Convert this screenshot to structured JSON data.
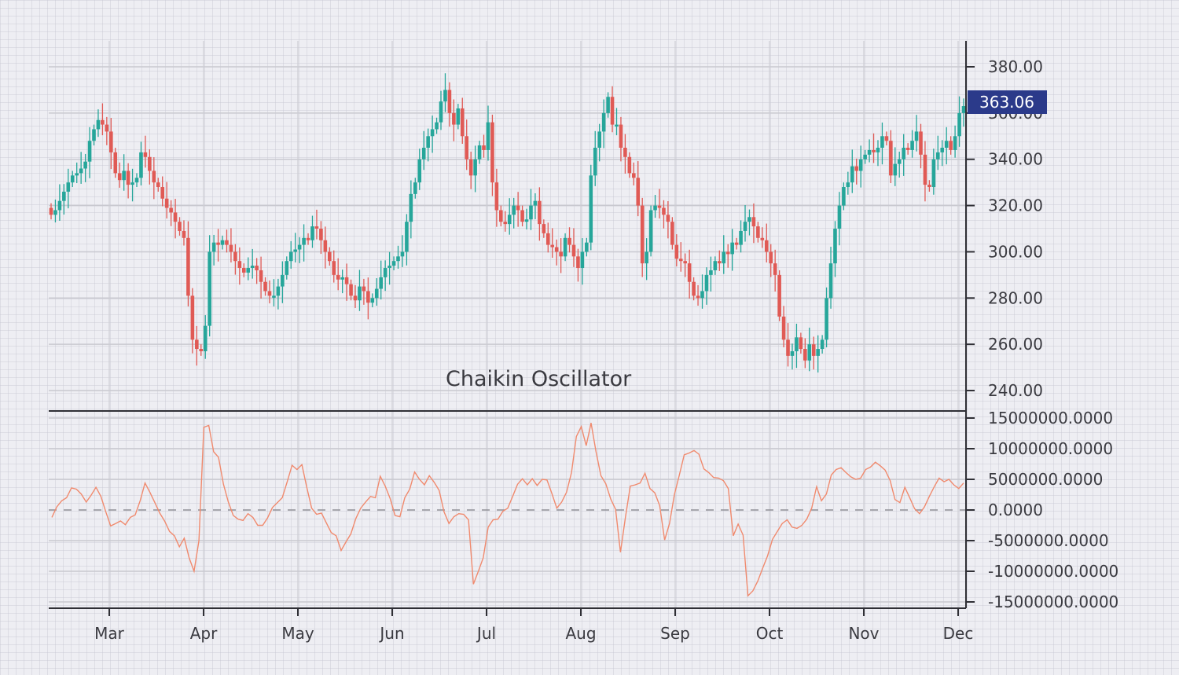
{
  "chart_data": [
    {
      "type": "candlestick",
      "title": "",
      "xlabel": "",
      "ylabel": "",
      "x_ticks": [
        "Mar",
        "Apr",
        "May",
        "Jun",
        "Jul",
        "Aug",
        "Sep",
        "Oct",
        "Nov",
        "Dec"
      ],
      "y_ticks": [
        "380.00",
        "360.00",
        "340.00",
        "320.00",
        "300.00",
        "280.00",
        "260.00",
        "240.00"
      ],
      "ylim": [
        232,
        390
      ],
      "last_price_label": "363.06",
      "up_color": "#26a69a",
      "down_color": "#ef5350",
      "grid": true,
      "closes": [
        316,
        318,
        322,
        326,
        330,
        333,
        334,
        336,
        339,
        348,
        353,
        357,
        355,
        352,
        343,
        334,
        331,
        335,
        329,
        330,
        332,
        343,
        341,
        335,
        330,
        328,
        323,
        319,
        317,
        313,
        309,
        306,
        281,
        262,
        258,
        257,
        268,
        300,
        304,
        303,
        305,
        303,
        300,
        296,
        293,
        291,
        293,
        294,
        292,
        287,
        283,
        281,
        281,
        285,
        290,
        296,
        300,
        301,
        303,
        306,
        305,
        311,
        310,
        305,
        300,
        296,
        290,
        288,
        289,
        286,
        281,
        279,
        285,
        283,
        278,
        280,
        284,
        289,
        293,
        294,
        296,
        298,
        300,
        313,
        325,
        330,
        340,
        345,
        350,
        353,
        356,
        365,
        370,
        360,
        355,
        362,
        350,
        340,
        333,
        340,
        346,
        344,
        356,
        330,
        318,
        313,
        312,
        316,
        320,
        318,
        313,
        314,
        320,
        322,
        312,
        308,
        303,
        302,
        300,
        298,
        306,
        303,
        298,
        293,
        300,
        304,
        333,
        345,
        352,
        360,
        367,
        355,
        355,
        345,
        341,
        334,
        332,
        320,
        295,
        300,
        318,
        320,
        319,
        316,
        313,
        303,
        297,
        296,
        295,
        287,
        281,
        280,
        283,
        290,
        292,
        296,
        295,
        300,
        299,
        304,
        303,
        309,
        313,
        315,
        311,
        306,
        305,
        300,
        295,
        290,
        272,
        262,
        255,
        257,
        263,
        258,
        253,
        260,
        255,
        258,
        262,
        280,
        295,
        310,
        320,
        328,
        330,
        337,
        335,
        340,
        342,
        344,
        343,
        345,
        350,
        348,
        333,
        338,
        340,
        345,
        344,
        348,
        352,
        342,
        329,
        328,
        340,
        343,
        345,
        348,
        344,
        350,
        360,
        363
      ],
      "oscillator": {
        "title": "Chaikin Oscillator",
        "y_ticks": [
          "15000000.0000",
          "10000000.0000",
          "5000000.0000",
          "0.0000",
          "-5000000.0000",
          "-10000000.0000",
          "-15000000.0000"
        ],
        "ylim": [
          -16000000,
          16000000
        ],
        "line_color": "#f08a6e",
        "zero_line": "dashed",
        "values": [
          -1.2,
          0.5,
          1.5,
          2,
          3.6,
          3.4,
          2.6,
          1.3,
          2.4,
          3.7,
          2.2,
          -0.3,
          -2.6,
          -2.2,
          -1.8,
          -2.4,
          -1.2,
          -0.8,
          1.5,
          4.4,
          2.9,
          1.2,
          -0.5,
          -1.8,
          -3.5,
          -4.2,
          -6,
          -4.6,
          -7.8,
          -10,
          -5,
          13.5,
          13.8,
          9.5,
          8.6,
          4.2,
          1.3,
          -0.9,
          -1.5,
          -1.7,
          -0.6,
          -1.2,
          -2.5,
          -2.5,
          -1.3,
          0.4,
          1.2,
          2,
          4.6,
          7.3,
          6.6,
          7.4,
          3.7,
          0.3,
          -0.7,
          -0.5,
          -2.1,
          -3.7,
          -4.2,
          -6.6,
          -5.2,
          -3.9,
          -1.4,
          0.3,
          1.3,
          2.2,
          2,
          5.5,
          3.9,
          1.9,
          -0.9,
          -1.1,
          2,
          3.4,
          6.2,
          5,
          4.1,
          5.6,
          4.5,
          3.2,
          -0.3,
          -2.2,
          -1.1,
          -0.6,
          -0.7,
          -1.6,
          -12.1,
          -10,
          -7.8,
          -2.8,
          -1.6,
          -1.5,
          -0.2,
          0.3,
          2.2,
          4.2,
          5.1,
          4.1,
          5.1,
          4,
          5,
          4.9,
          2.7,
          0.3,
          1.3,
          2.9,
          6.1,
          12,
          13.6,
          10.5,
          14.2,
          9.5,
          5.6,
          4.3,
          1.8,
          0.1,
          -6.9,
          -1.2,
          3.9,
          4.1,
          4.4,
          6,
          3.5,
          2.8,
          0.7,
          -4.9,
          -2.2,
          2.5,
          5.7,
          9,
          9.3,
          9.7,
          9.1,
          6.7,
          6.1,
          5.3,
          5.2,
          4.8,
          3.5,
          -4.2,
          -2.3,
          -4.1,
          -14,
          -13.2,
          -11.6,
          -9.5,
          -7.5,
          -4.8,
          -3.5,
          -2.2,
          -1.6,
          -2.8,
          -3,
          -2.5,
          -1.5,
          0.3,
          3.8,
          1.5,
          2.6,
          5.7,
          6.6,
          6.9,
          6.1,
          5.4,
          5,
          5.2,
          6.6,
          7,
          7.8,
          7.2,
          6.5,
          4.8,
          1.7,
          1.2,
          3.7,
          2,
          0.2,
          -0.6,
          0.5,
          2.2,
          3.8,
          5.2,
          4.6,
          5,
          4.1,
          3.5,
          4.4
        ]
      }
    }
  ],
  "labels": {
    "oscillator_title": "Chaikin Oscillator",
    "last_price": "363.06",
    "price_ticks": [
      "380.00",
      "360.00",
      "340.00",
      "320.00",
      "300.00",
      "280.00",
      "260.00",
      "240.00"
    ],
    "osc_ticks": [
      "15000000.0000",
      "10000000.0000",
      "5000000.0000",
      "0.0000",
      "-5000000.0000",
      "-10000000.0000",
      "-15000000.0000"
    ],
    "months": [
      "Mar",
      "Apr",
      "May",
      "Jun",
      "Jul",
      "Aug",
      "Sep",
      "Oct",
      "Nov",
      "Dec"
    ]
  },
  "colors": {
    "up": "#26a69a",
    "down": "#e05a55",
    "oscillator_line": "#f08a6e",
    "price_badge_bg": "#2b3a8a",
    "axis": "#2f2f35",
    "text": "#3a3a40"
  }
}
